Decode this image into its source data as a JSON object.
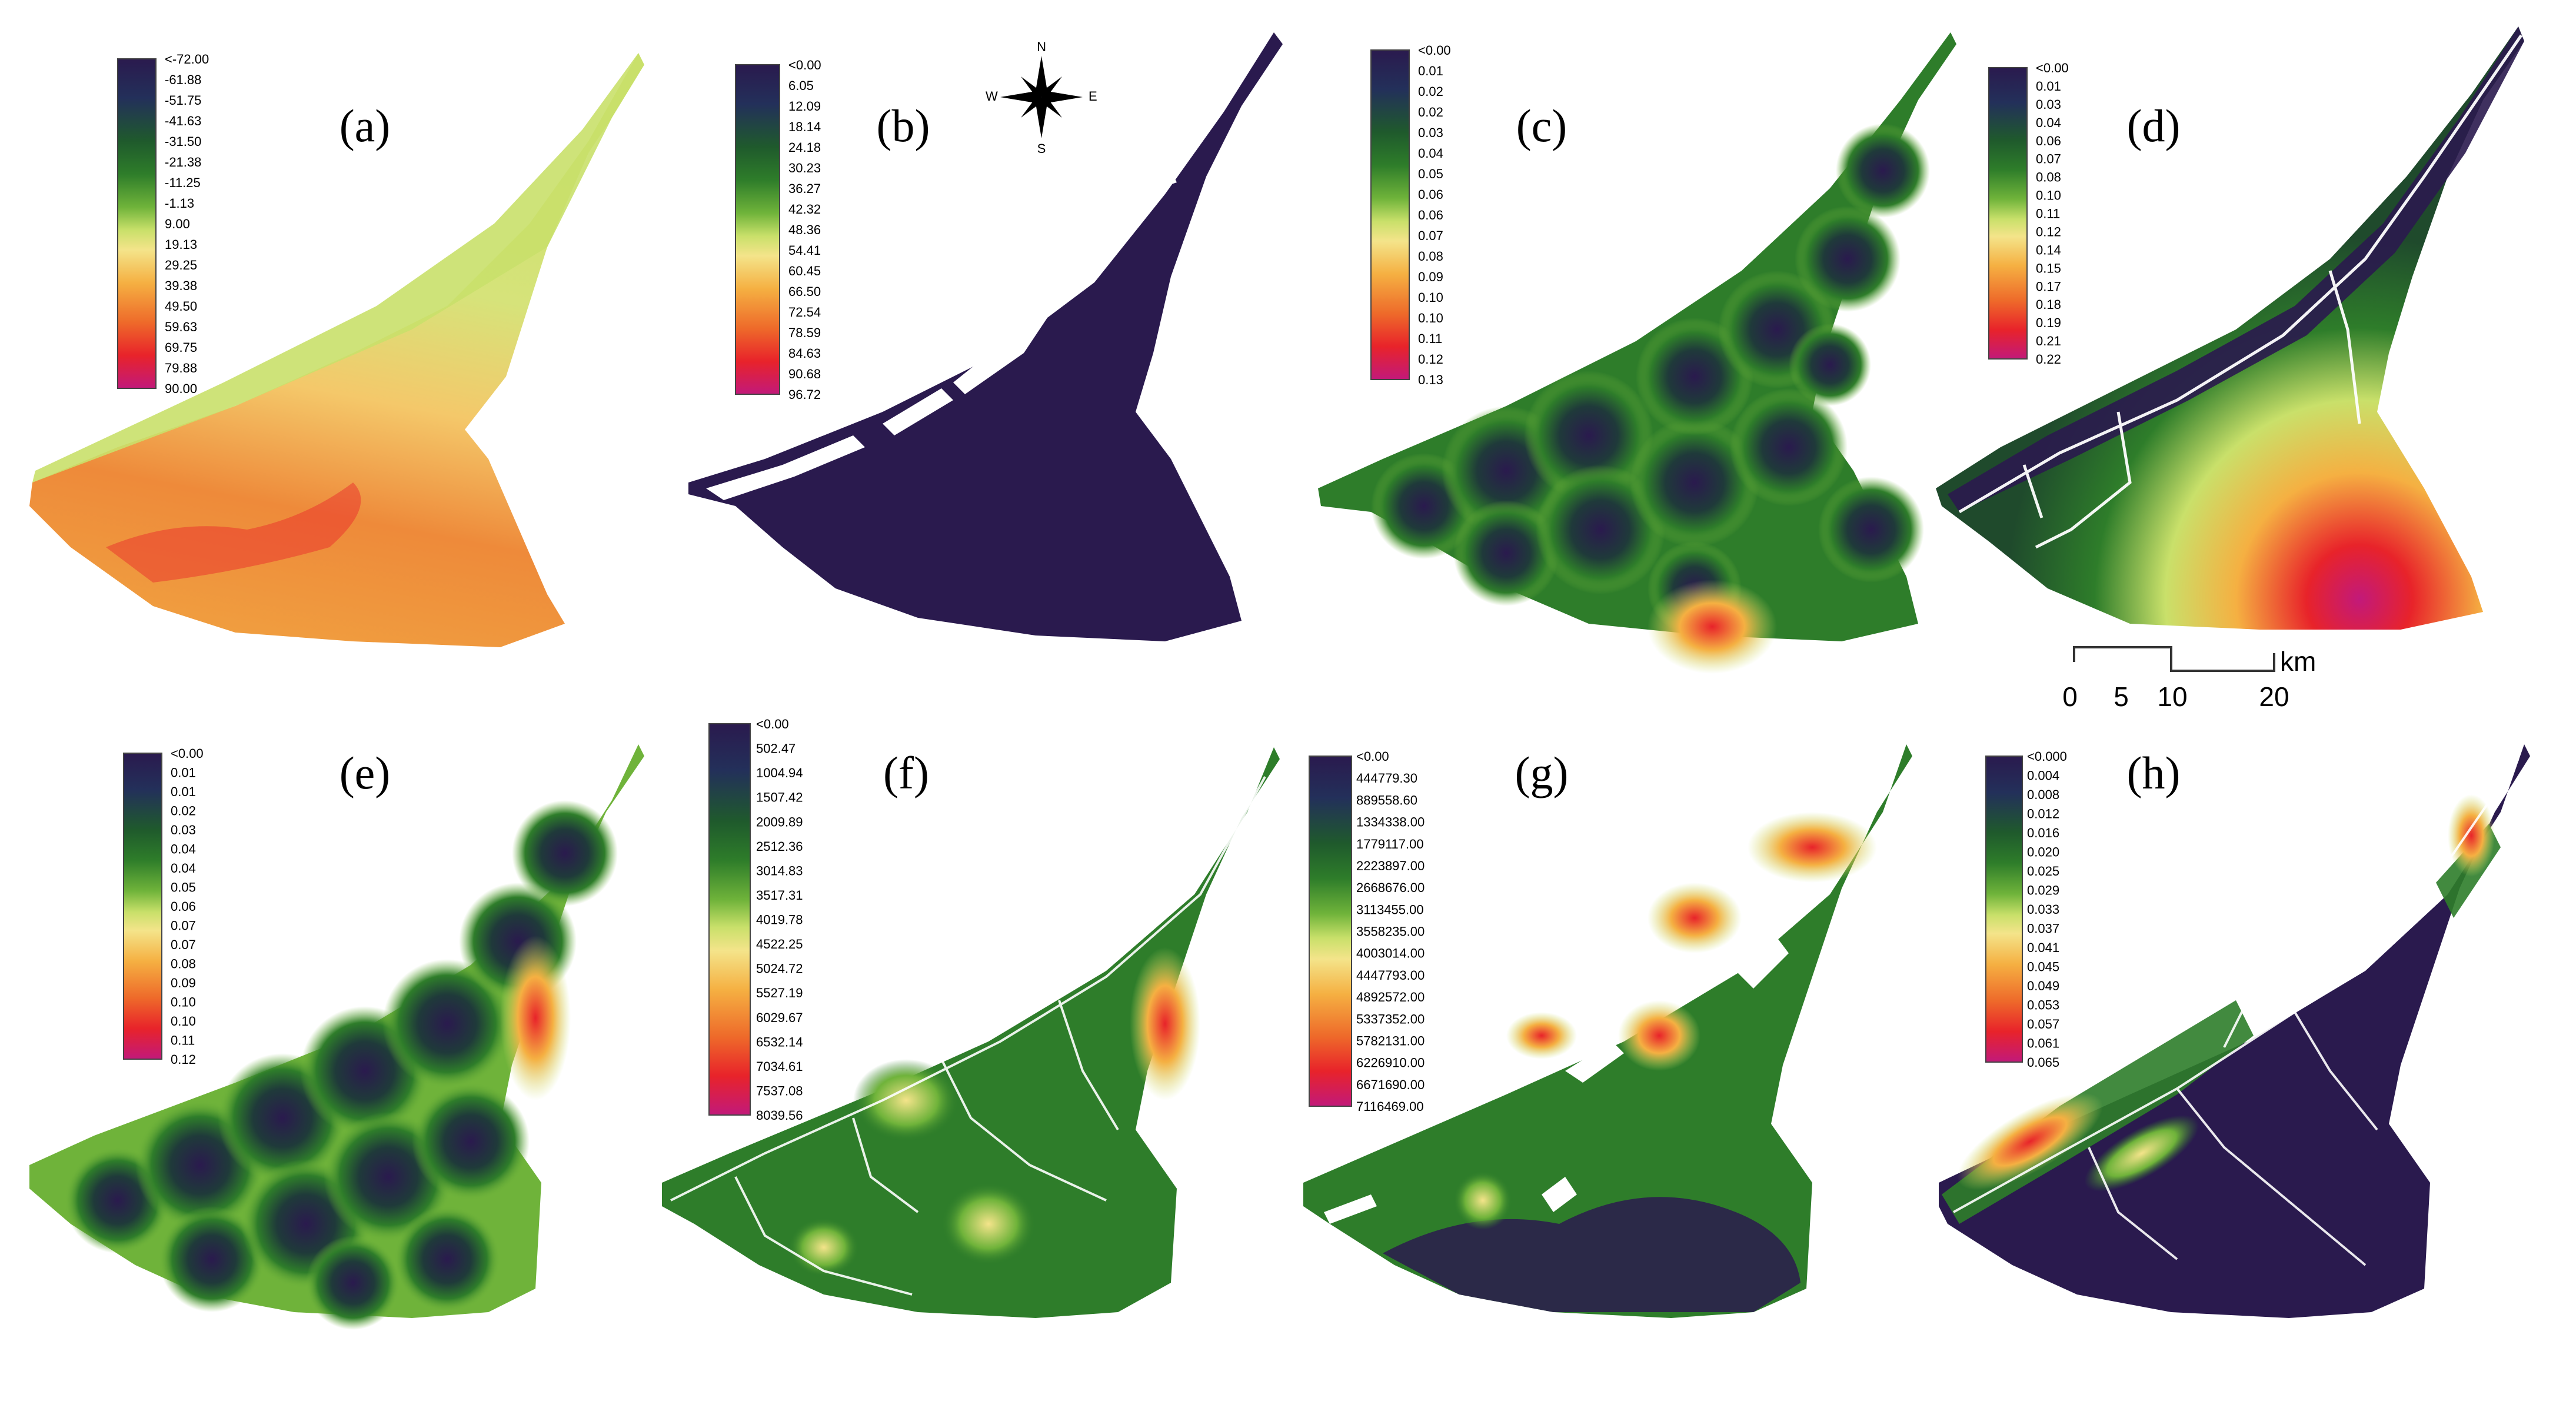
{
  "colors": {
    "background": "#ffffff",
    "dark": "#2a1a4e",
    "road": "#ffffff",
    "ramp": [
      "#2a1a4e",
      "#23305a",
      "#1f5a2c",
      "#2e7d2a",
      "#6fb33a",
      "#c9e06a",
      "#f4e48a",
      "#f5b042",
      "#ee6a2a",
      "#e8232a",
      "#c2197a"
    ]
  },
  "compass": {
    "n": "N",
    "s": "S",
    "e": "E",
    "w": "W"
  },
  "scale_bar": {
    "ticks": [
      "0",
      "5",
      "10",
      "20"
    ],
    "unit": "km"
  },
  "panels": [
    {
      "id": "a",
      "label": "(a)",
      "legend": [
        "<-72.00",
        "-61.88",
        "-51.75",
        "-41.63",
        "-31.50",
        "-21.38",
        "-11.25",
        "-1.13",
        "9.00",
        "19.13",
        "29.25",
        "39.38",
        "49.50",
        "59.63",
        "69.75",
        "79.88",
        "90.00"
      ]
    },
    {
      "id": "b",
      "label": "(b)",
      "legend": [
        "<0.00",
        "6.05",
        "12.09",
        "18.14",
        "24.18",
        "30.23",
        "36.27",
        "42.32",
        "48.36",
        "54.41",
        "60.45",
        "66.50",
        "72.54",
        "78.59",
        "84.63",
        "90.68",
        "96.72"
      ]
    },
    {
      "id": "c",
      "label": "(c)",
      "legend": [
        "<0.00",
        "0.01",
        "0.02",
        "0.02",
        "0.03",
        "0.04",
        "0.05",
        "0.06",
        "0.06",
        "0.07",
        "0.08",
        "0.09",
        "0.10",
        "0.10",
        "0.11",
        "0.12",
        "0.13"
      ]
    },
    {
      "id": "d",
      "label": "(d)",
      "legend": [
        "<0.00",
        "0.01",
        "0.03",
        "0.04",
        "0.06",
        "0.07",
        "0.08",
        "0.10",
        "0.11",
        "0.12",
        "0.14",
        "0.15",
        "0.17",
        "0.18",
        "0.19",
        "0.21",
        "0.22"
      ]
    },
    {
      "id": "e",
      "label": "(e)",
      "legend": [
        "<0.00",
        "0.01",
        "0.01",
        "0.02",
        "0.03",
        "0.04",
        "0.04",
        "0.05",
        "0.06",
        "0.07",
        "0.07",
        "0.08",
        "0.09",
        "0.10",
        "0.10",
        "0.11",
        "0.12"
      ]
    },
    {
      "id": "f",
      "label": "(f)",
      "legend": [
        "<0.00",
        "502.47",
        "1004.94",
        "1507.42",
        "2009.89",
        "2512.36",
        "3014.83",
        "3517.31",
        "4019.78",
        "4522.25",
        "5024.72",
        "5527.19",
        "6029.67",
        "6532.14",
        "7034.61",
        "7537.08",
        "8039.56"
      ]
    },
    {
      "id": "g",
      "label": "(g)",
      "legend": [
        "<0.00",
        "444779.30",
        "889558.60",
        "1334338.00",
        "1779117.00",
        "2223897.00",
        "2668676.00",
        "3113455.00",
        "3558235.00",
        "4003014.00",
        "4447793.00",
        "4892572.00",
        "5337352.00",
        "5782131.00",
        "6226910.00",
        "6671690.00",
        "7116469.00"
      ]
    },
    {
      "id": "h",
      "label": "(h)",
      "legend": [
        "<0.000",
        "0.004",
        "0.008",
        "0.012",
        "0.016",
        "0.020",
        "0.025",
        "0.029",
        "0.033",
        "0.037",
        "0.041",
        "0.045",
        "0.049",
        "0.053",
        "0.057",
        "0.061",
        "0.065"
      ]
    }
  ]
}
